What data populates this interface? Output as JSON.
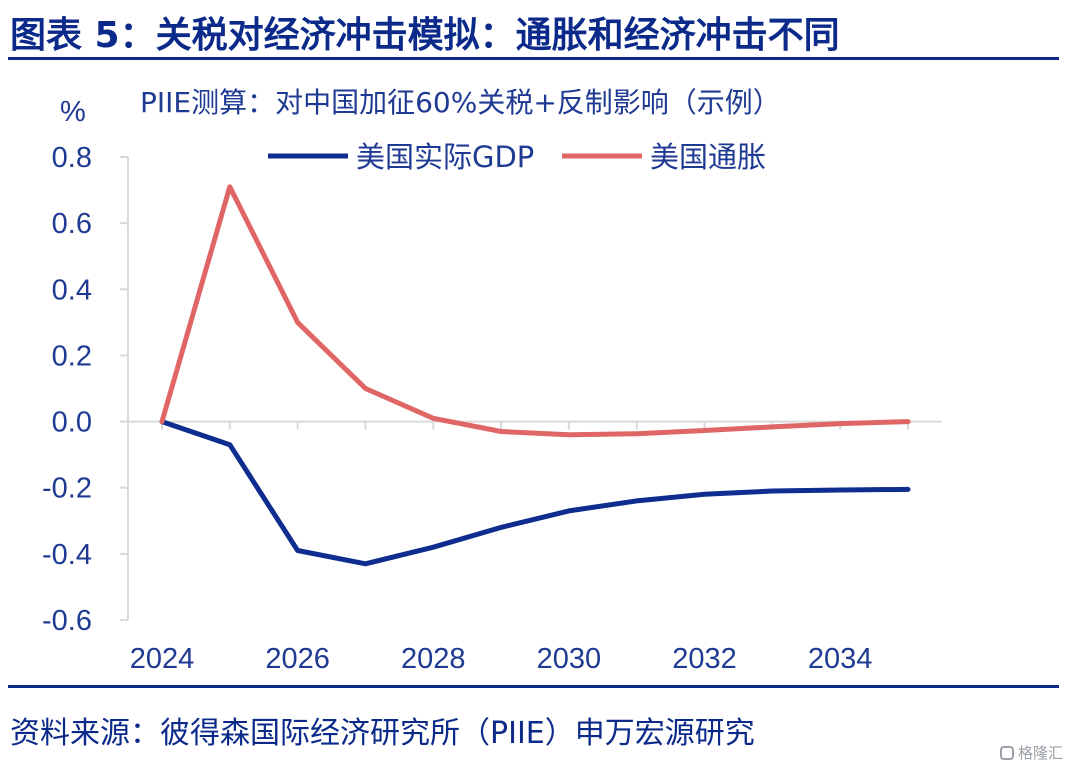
{
  "figure": {
    "title": "图表 5：关税对经济冲击模拟：通胀和经济冲击不同",
    "source": "资料来源：彼得森国际经济研究所（PIIE）申万宏源研究",
    "watermark": "格隆汇"
  },
  "colors": {
    "brand_blue": "#0b2a8a",
    "gdp_line": "#0f2d8f",
    "inflation_line": "#e06666",
    "axis_line": "#d9d9d9"
  },
  "chart_data": {
    "type": "line",
    "title": "PIIE测算：对中国加征60%关税+反制影响（示例）",
    "ylabel": "%",
    "xlabel": "",
    "ylim": [
      -0.6,
      0.8
    ],
    "yticks": [
      0.8,
      0.6,
      0.4,
      0.2,
      0.0,
      -0.2,
      -0.4,
      -0.6
    ],
    "ytick_labels": [
      "0.8",
      "0.6",
      "0.4",
      "0.2",
      "0.0",
      "-0.2",
      "-0.4",
      "-0.6"
    ],
    "xlim": [
      2024,
      2035.5
    ],
    "xticks": [
      2024,
      2026,
      2028,
      2030,
      2032,
      2034
    ],
    "xtick_labels": [
      "2024",
      "2026",
      "2028",
      "2030",
      "2032",
      "2034"
    ],
    "x": [
      2024,
      2025,
      2026,
      2027,
      2028,
      2029,
      2030,
      2031,
      2032,
      2033,
      2034,
      2035
    ],
    "legend_position": "top-center",
    "grid": false,
    "series": [
      {
        "name": "美国实际GDP",
        "color": "#0f2d8f",
        "values": [
          0.0,
          -0.07,
          -0.39,
          -0.43,
          -0.38,
          -0.32,
          -0.27,
          -0.24,
          -0.22,
          -0.21,
          -0.207,
          -0.205
        ]
      },
      {
        "name": "美国通胀",
        "color": "#e06666",
        "values": [
          0.0,
          0.71,
          0.3,
          0.1,
          0.01,
          -0.03,
          -0.04,
          -0.037,
          -0.027,
          -0.016,
          -0.006,
          0.0
        ]
      }
    ]
  }
}
